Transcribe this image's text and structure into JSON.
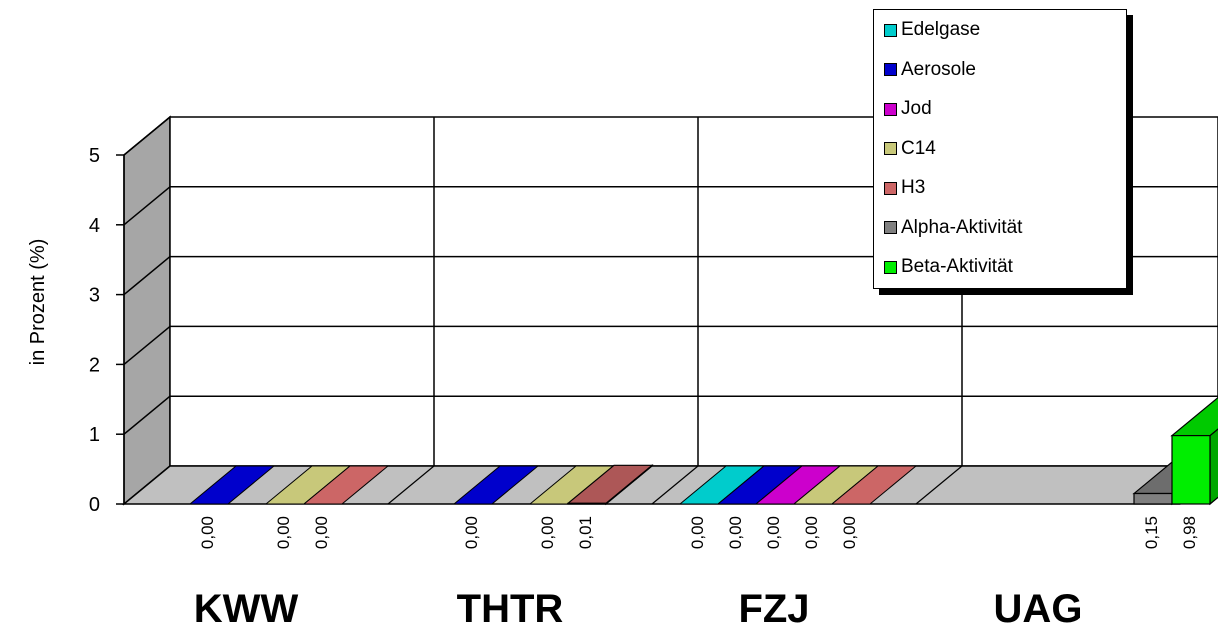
{
  "chart_data": {
    "type": "bar",
    "ylabel": "in Prozent (%)",
    "ylim": [
      0,
      5
    ],
    "yticks": [
      "0",
      "1",
      "2",
      "3",
      "4",
      "5"
    ],
    "categories": [
      "KWW",
      "THTR",
      "FZJ",
      "UAG"
    ],
    "series": [
      {
        "name": "Edelgase",
        "color": "#00cccc",
        "values": [
          null,
          null,
          0.0,
          null
        ],
        "labels": [
          "",
          "",
          "0,00",
          ""
        ]
      },
      {
        "name": "Aerosole",
        "color": "#0000cc",
        "values": [
          0.0,
          0.0,
          0.0,
          null
        ],
        "labels": [
          "0,00",
          "0,00",
          "0,00",
          ""
        ]
      },
      {
        "name": "Jod",
        "color": "#cc00cc",
        "values": [
          null,
          null,
          0.0,
          null
        ],
        "labels": [
          "",
          "",
          "0,00",
          ""
        ]
      },
      {
        "name": "C14",
        "color": "#c8c87a",
        "values": [
          0.0,
          0.0,
          0.0,
          null
        ],
        "labels": [
          "0,00",
          "0,00",
          "0,00",
          ""
        ]
      },
      {
        "name": "H3",
        "color": "#cc6666",
        "values": [
          0.0,
          0.01,
          0.0,
          null
        ],
        "labels": [
          "0,00",
          "0,01",
          "0,00",
          ""
        ]
      },
      {
        "name": "Alpha-Aktivität",
        "color": "#808080",
        "values": [
          null,
          null,
          null,
          0.15
        ],
        "labels": [
          "",
          "",
          "",
          "0,15"
        ]
      },
      {
        "name": "Beta-Aktivität",
        "color": "#00ee00",
        "values": [
          null,
          null,
          null,
          0.98
        ],
        "labels": [
          "",
          "",
          "",
          "0,98"
        ]
      }
    ],
    "grid": true,
    "legend_position": "top-right"
  }
}
